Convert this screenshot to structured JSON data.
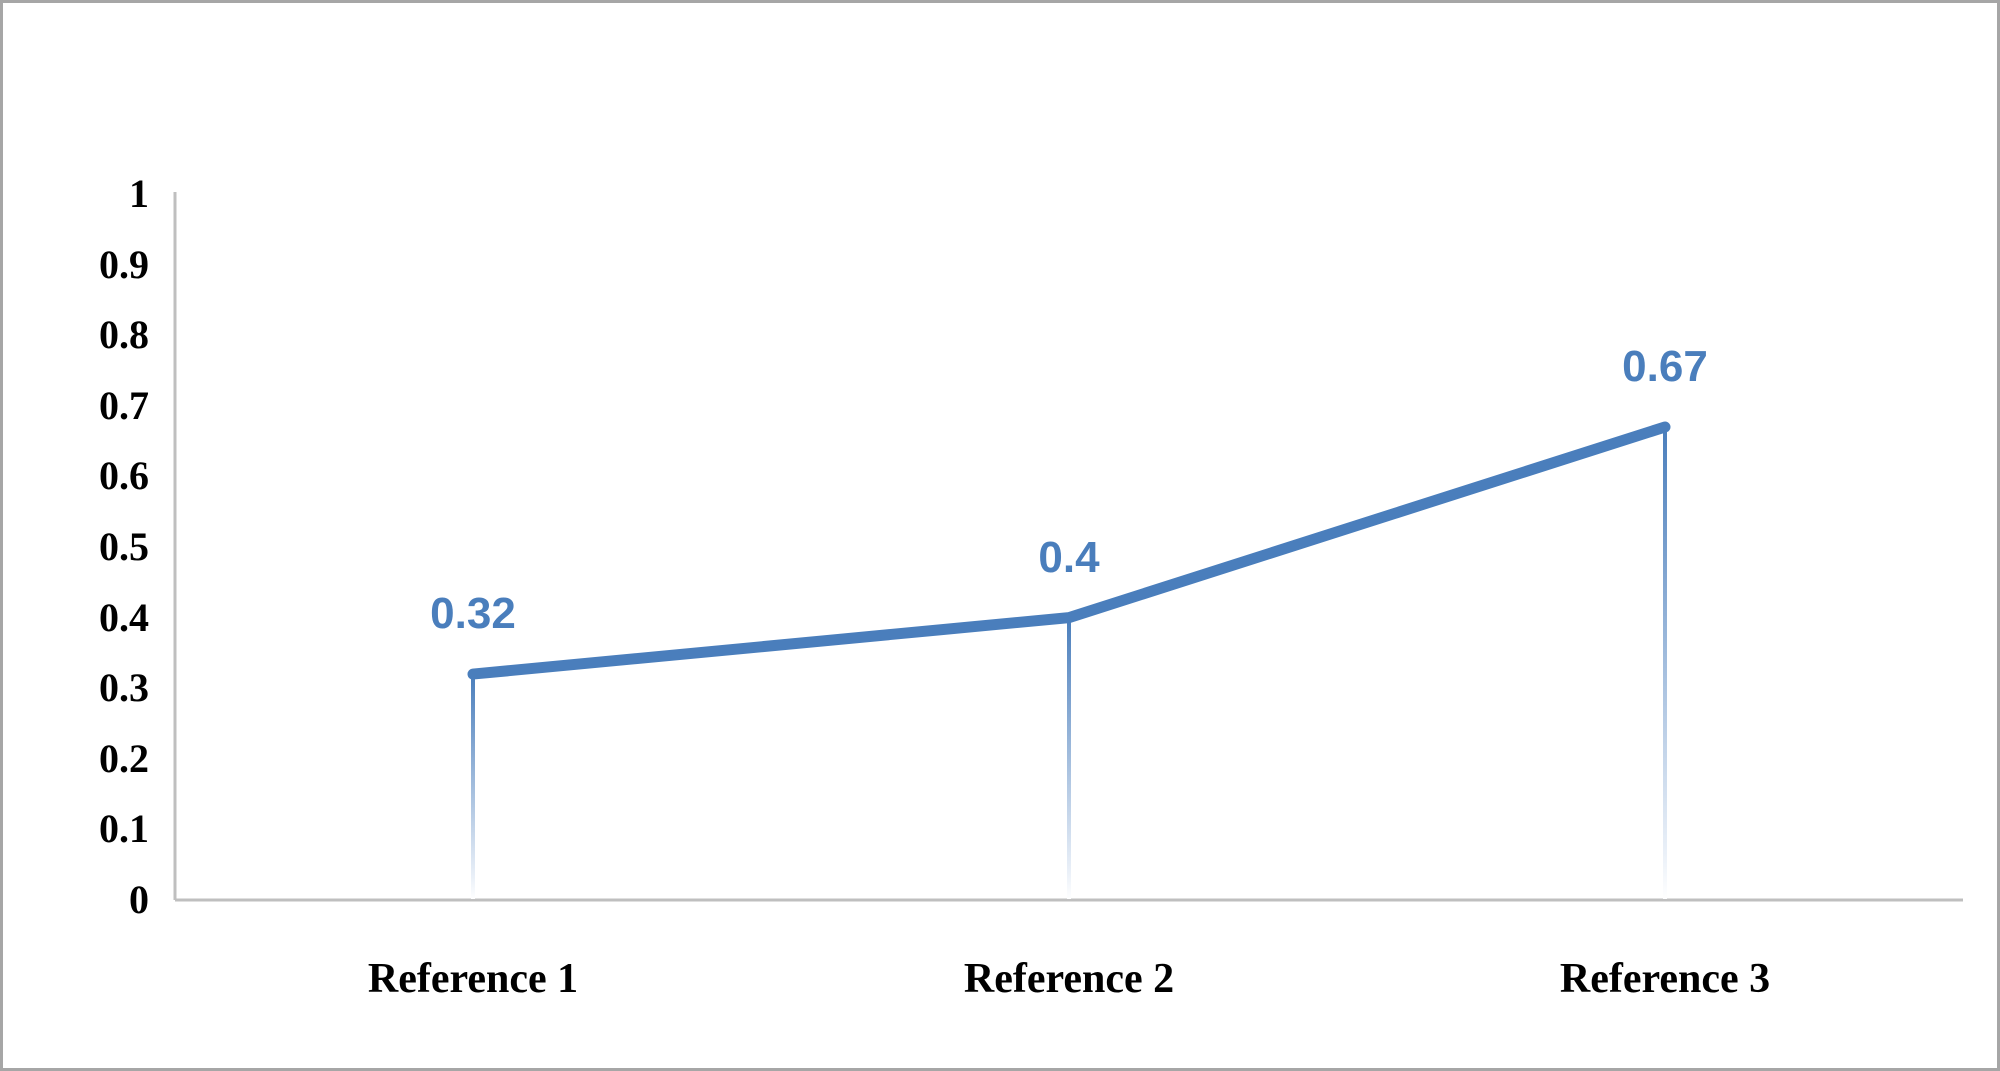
{
  "chart_data": {
    "type": "line",
    "title": "",
    "xlabel": "",
    "ylabel": "",
    "categories": [
      "Reference 1",
      "Reference 2",
      "Reference 3"
    ],
    "values": [
      0.32,
      0.4,
      0.67
    ],
    "data_labels": [
      "0.32",
      "0.4",
      "0.67"
    ],
    "ylim": [
      0,
      1
    ],
    "ytick_step": 0.1,
    "yticks": [
      "0",
      "0.1",
      "0.2",
      "0.3",
      "0.4",
      "0.5",
      "0.6",
      "0.7",
      "0.8",
      "0.9",
      "1"
    ],
    "grid": false,
    "legend": "none",
    "drop_lines": true,
    "colors": {
      "line": "#4a7ebc",
      "data_label": "#4a7ebc",
      "axis": "#bfbfbf",
      "tick_text": "#000000",
      "category_text": "#000000",
      "background": "#ffffff",
      "border": "#a6a6a6"
    }
  }
}
